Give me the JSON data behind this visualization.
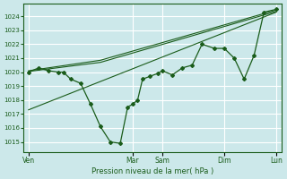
{
  "bg_color": "#cce8ea",
  "grid_color": "#ffffff",
  "line_color": "#1a5c1a",
  "marker_color": "#1a5c1a",
  "ylabel_ticks": [
    1015,
    1016,
    1017,
    1018,
    1019,
    1020,
    1021,
    1022,
    1023,
    1024
  ],
  "ylim": [
    1014.3,
    1024.9
  ],
  "xlabel": "Pression niveau de la mer( hPa )",
  "xtick_labels": [
    "Ven",
    "Mar",
    "Sam",
    "Dim",
    "Lun"
  ],
  "xtick_pos": [
    0.0,
    0.42,
    0.54,
    0.79,
    1.0
  ],
  "xlim": [
    -0.02,
    1.02
  ],
  "line1_x": [
    0.0,
    0.04,
    0.08,
    0.12,
    0.14,
    0.17,
    0.21,
    0.25,
    0.29,
    0.33,
    0.37,
    0.4,
    0.42,
    0.44,
    0.46,
    0.49,
    0.52,
    0.54,
    0.58,
    0.62,
    0.66,
    0.7,
    0.75,
    0.79,
    0.83,
    0.87,
    0.91,
    0.95,
    1.0
  ],
  "line1_y": [
    1020.0,
    1020.3,
    1020.1,
    1020.0,
    1020.0,
    1019.5,
    1019.2,
    1017.7,
    1016.1,
    1015.0,
    1014.9,
    1017.5,
    1017.7,
    1018.0,
    1019.5,
    1019.7,
    1019.9,
    1020.1,
    1019.8,
    1020.3,
    1020.5,
    1022.0,
    1021.7,
    1021.7,
    1021.0,
    1019.5,
    1021.2,
    1024.3,
    1024.5
  ],
  "line2_x": [
    0.0,
    0.29,
    1.0
  ],
  "line2_y": [
    1020.05,
    1020.7,
    1024.35
  ],
  "line3_x": [
    0.0,
    0.29,
    1.0
  ],
  "line3_y": [
    1020.1,
    1020.85,
    1024.45
  ],
  "line4_x": [
    0.0,
    1.0
  ],
  "line4_y": [
    1017.3,
    1024.3
  ],
  "vline_pos": [
    0.0,
    0.42,
    0.54,
    0.79,
    1.0
  ]
}
